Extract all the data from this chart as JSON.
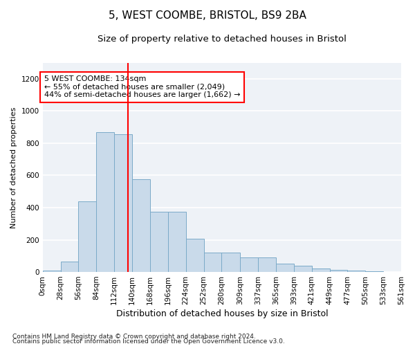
{
  "title1": "5, WEST COOMBE, BRISTOL, BS9 2BA",
  "title2": "Size of property relative to detached houses in Bristol",
  "xlabel": "Distribution of detached houses by size in Bristol",
  "ylabel": "Number of detached properties",
  "bar_color": "#c9daea",
  "bar_edge_color": "#7aaac8",
  "vline_x": 134,
  "vline_color": "red",
  "annotation_text": "5 WEST COOMBE: 134sqm\n← 55% of detached houses are smaller (2,049)\n44% of semi-detached houses are larger (1,662) →",
  "annotation_box_color": "white",
  "annotation_box_edge_color": "red",
  "footnote1": "Contains HM Land Registry data © Crown copyright and database right 2024.",
  "footnote2": "Contains public sector information licensed under the Open Government Licence v3.0.",
  "bin_edges": [
    0,
    28,
    56,
    84,
    112,
    140,
    168,
    196,
    224,
    252,
    280,
    309,
    337,
    365,
    393,
    421,
    449,
    477,
    505,
    533,
    561
  ],
  "bar_heights": [
    10,
    65,
    440,
    870,
    855,
    575,
    375,
    375,
    205,
    120,
    120,
    90,
    90,
    50,
    40,
    20,
    15,
    10,
    5,
    2
  ],
  "ylim": [
    0,
    1300
  ],
  "yticks": [
    0,
    200,
    400,
    600,
    800,
    1000,
    1200
  ],
  "background_color": "#eef2f7",
  "grid_color": "white",
  "title1_fontsize": 11,
  "title2_fontsize": 9.5,
  "xlabel_fontsize": 9,
  "ylabel_fontsize": 8,
  "tick_fontsize": 7.5,
  "annotation_fontsize": 8,
  "footnote_fontsize": 6.5
}
